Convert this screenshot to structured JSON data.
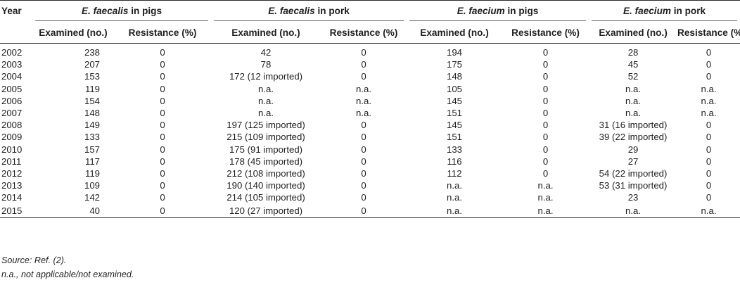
{
  "header": {
    "year": "Year",
    "groups": [
      {
        "species": "E. faecalis",
        "suffix": " in pigs"
      },
      {
        "species": "E. faecalis",
        "suffix": " in pork"
      },
      {
        "species": "E. faecium",
        "suffix": " in pigs"
      },
      {
        "species": "E. faecium",
        "suffix": " in pork"
      }
    ],
    "examined": "Examined (no.)",
    "resistance": "Resistance (%)"
  },
  "rows": [
    [
      "2002",
      "238",
      "0",
      "42",
      "0",
      "194",
      "0",
      "28",
      "0"
    ],
    [
      "2003",
      "207",
      "0",
      "78",
      "0",
      "175",
      "0",
      "45",
      "0"
    ],
    [
      "2004",
      "153",
      "0",
      "172 (12 imported)",
      "0",
      "148",
      "0",
      "52",
      "0"
    ],
    [
      "2005",
      "119",
      "0",
      "n.a.",
      "n.a.",
      "105",
      "0",
      "n.a.",
      "n.a."
    ],
    [
      "2006",
      "154",
      "0",
      "n.a.",
      "n.a.",
      "145",
      "0",
      "n.a.",
      "n.a."
    ],
    [
      "2007",
      "148",
      "0",
      "n.a.",
      "n.a.",
      "151",
      "0",
      "n.a.",
      "n.a."
    ],
    [
      "2008",
      "149",
      "0",
      "197 (125 imported)",
      "0",
      "145",
      "0",
      "31 (16 imported)",
      "0"
    ],
    [
      "2009",
      "133",
      "0",
      "215 (109 imported)",
      "0",
      "151",
      "0",
      "39 (22 imported)",
      "0"
    ],
    [
      "2010",
      "157",
      "0",
      "175 (91 imported)",
      "0",
      "133",
      "0",
      "29",
      "0"
    ],
    [
      "2011",
      "117",
      "0",
      "178 (45 imported)",
      "0",
      "116",
      "0",
      "27",
      "0"
    ],
    [
      "2012",
      "119",
      "0",
      "212 (108 imported)",
      "0",
      "112",
      "0",
      "54 (22 imported)",
      "0"
    ],
    [
      "2013",
      "109",
      "0",
      "190 (140 imported)",
      "0",
      "n.a.",
      "n.a.",
      "53 (31 imported)",
      "0"
    ],
    [
      "2014",
      "142",
      "0",
      "214 (105 imported)",
      "0",
      "n.a.",
      "n.a.",
      "23",
      "0"
    ],
    [
      "2015",
      "40",
      "0",
      "120 (27 imported)",
      "0",
      "n.a.",
      "n.a.",
      "n.a.",
      "n.a."
    ]
  ],
  "notes": {
    "source_prefix": "Source: Ref. ",
    "source_ref": "(2)",
    "source_suffix": ".",
    "abbrev": "n.a., not applicable/not examined."
  }
}
